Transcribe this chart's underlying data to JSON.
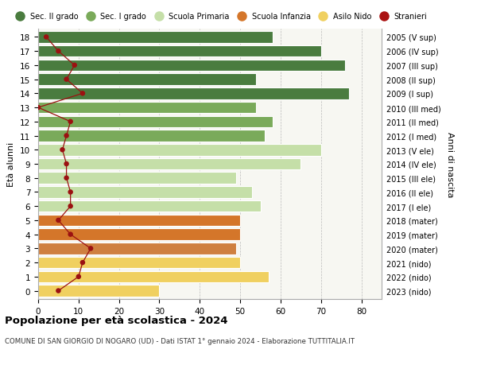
{
  "ages": [
    18,
    17,
    16,
    15,
    14,
    13,
    12,
    11,
    10,
    9,
    8,
    7,
    6,
    5,
    4,
    3,
    2,
    1,
    0
  ],
  "bar_values": [
    58,
    70,
    76,
    54,
    77,
    54,
    58,
    56,
    70,
    65,
    49,
    53,
    55,
    50,
    50,
    49,
    50,
    57,
    30
  ],
  "bar_colors": [
    "#4a7c3f",
    "#4a7c3f",
    "#4a7c3f",
    "#4a7c3f",
    "#4a7c3f",
    "#7aaa5a",
    "#7aaa5a",
    "#7aaa5a",
    "#c5dfa8",
    "#c5dfa8",
    "#c5dfa8",
    "#c5dfa8",
    "#c5dfa8",
    "#d4762a",
    "#d4762a",
    "#cf8040",
    "#f0d060",
    "#f0d060",
    "#f0d060"
  ],
  "right_labels": [
    "2005 (V sup)",
    "2006 (IV sup)",
    "2007 (III sup)",
    "2008 (II sup)",
    "2009 (I sup)",
    "2010 (III med)",
    "2011 (II med)",
    "2012 (I med)",
    "2013 (V ele)",
    "2014 (IV ele)",
    "2015 (III ele)",
    "2016 (II ele)",
    "2017 (I ele)",
    "2018 (mater)",
    "2019 (mater)",
    "2020 (mater)",
    "2021 (nido)",
    "2022 (nido)",
    "2023 (nido)"
  ],
  "stranieri_values": [
    2,
    5,
    9,
    7,
    11,
    0,
    8,
    7,
    6,
    7,
    7,
    8,
    8,
    5,
    8,
    13,
    11,
    10,
    5
  ],
  "legend_labels": [
    "Sec. II grado",
    "Sec. I grado",
    "Scuola Primaria",
    "Scuola Infanzia",
    "Asilo Nido",
    "Stranieri"
  ],
  "legend_colors": [
    "#4a7c3f",
    "#7aaa5a",
    "#c5dfa8",
    "#d4762a",
    "#f0d060",
    "#aa1111"
  ],
  "title": "Popolazione per età scolastica - 2024",
  "subtitle": "COMUNE DI SAN GIORGIO DI NOGARO (UD) - Dati ISTAT 1° gennaio 2024 - Elaborazione TUTTITALIA.IT",
  "ylabel": "Età alunni",
  "ylabel_right": "Anni di nascita",
  "xlim": [
    0,
    85
  ],
  "xticks": [
    0,
    10,
    20,
    30,
    40,
    50,
    60,
    70,
    80
  ],
  "plot_bg": "#f7f7f2",
  "fig_bg": "#ffffff",
  "bar_height": 0.82
}
